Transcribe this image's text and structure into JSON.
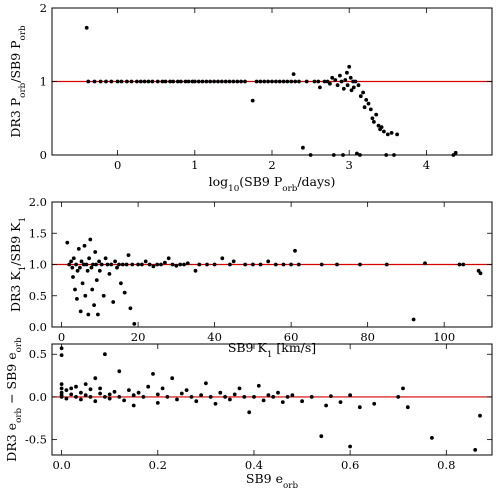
{
  "chart_data": [
    {
      "type": "scatter",
      "xlabel": "log₁₀(SB9 P_orb/days)",
      "ylabel": "DR3 P_orb/SB9 P_orb",
      "xlim": [
        -0.85,
        4.85
      ],
      "ylim": [
        0,
        2
      ],
      "xticks": [
        0,
        1,
        2,
        3,
        4
      ],
      "yticks": [
        0,
        1,
        2
      ],
      "reference_line": 1,
      "points": [
        [
          -0.4,
          1.73
        ],
        [
          -0.38,
          1.0
        ],
        [
          -0.3,
          1.0
        ],
        [
          -0.22,
          1.0
        ],
        [
          -0.15,
          1.0
        ],
        [
          -0.08,
          1.0
        ],
        [
          0.0,
          1.0
        ],
        [
          0.05,
          1.0
        ],
        [
          0.12,
          1.0
        ],
        [
          0.18,
          1.0
        ],
        [
          0.25,
          1.0
        ],
        [
          0.3,
          1.0
        ],
        [
          0.35,
          1.0
        ],
        [
          0.4,
          1.0
        ],
        [
          0.45,
          1.0
        ],
        [
          0.52,
          1.0
        ],
        [
          0.58,
          1.0
        ],
        [
          0.62,
          1.0
        ],
        [
          0.68,
          1.0
        ],
        [
          0.72,
          1.0
        ],
        [
          0.78,
          1.0
        ],
        [
          0.82,
          1.0
        ],
        [
          0.88,
          1.0
        ],
        [
          0.92,
          1.0
        ],
        [
          0.97,
          1.0
        ],
        [
          1.0,
          1.0
        ],
        [
          1.05,
          1.0
        ],
        [
          1.1,
          1.0
        ],
        [
          1.15,
          1.0
        ],
        [
          1.2,
          1.0
        ],
        [
          1.25,
          1.0
        ],
        [
          1.3,
          1.0
        ],
        [
          1.35,
          1.0
        ],
        [
          1.4,
          1.0
        ],
        [
          1.45,
          1.0
        ],
        [
          1.5,
          1.0
        ],
        [
          1.55,
          1.0
        ],
        [
          1.6,
          1.0
        ],
        [
          1.65,
          1.0
        ],
        [
          1.75,
          0.74
        ],
        [
          1.8,
          1.0
        ],
        [
          1.85,
          1.0
        ],
        [
          1.9,
          1.0
        ],
        [
          1.95,
          1.0
        ],
        [
          2.0,
          1.0
        ],
        [
          2.05,
          1.0
        ],
        [
          2.1,
          1.0
        ],
        [
          2.15,
          1.0
        ],
        [
          2.2,
          1.0
        ],
        [
          2.25,
          1.0
        ],
        [
          2.28,
          1.1
        ],
        [
          2.3,
          1.0
        ],
        [
          2.35,
          1.0
        ],
        [
          2.4,
          0.1
        ],
        [
          2.45,
          1.0
        ],
        [
          2.5,
          0.0
        ],
        [
          2.55,
          1.0
        ],
        [
          2.6,
          1.0
        ],
        [
          2.62,
          0.92
        ],
        [
          2.68,
          1.0
        ],
        [
          2.72,
          1.0
        ],
        [
          2.75,
          0.97
        ],
        [
          2.78,
          1.05
        ],
        [
          2.8,
          0.0
        ],
        [
          2.82,
          1.02
        ],
        [
          2.85,
          0.95
        ],
        [
          2.88,
          1.08
        ],
        [
          2.9,
          1.0
        ],
        [
          2.92,
          0.0
        ],
        [
          2.93,
          0.9
        ],
        [
          2.95,
          1.02
        ],
        [
          2.97,
          1.12
        ],
        [
          2.98,
          0.95
        ],
        [
          3.0,
          1.2
        ],
        [
          3.02,
          1.05
        ],
        [
          3.03,
          0.88
        ],
        [
          3.05,
          1.0
        ],
        [
          3.06,
          0.92
        ],
        [
          3.08,
          1.0
        ],
        [
          3.1,
          0.02
        ],
        [
          3.12,
          0.95
        ],
        [
          3.14,
          0.0
        ],
        [
          3.15,
          0.8
        ],
        [
          3.18,
          0.85
        ],
        [
          3.2,
          0.65
        ],
        [
          3.22,
          0.75
        ],
        [
          3.25,
          0.7
        ],
        [
          3.28,
          0.62
        ],
        [
          3.3,
          0.5
        ],
        [
          3.32,
          0.45
        ],
        [
          3.35,
          0.55
        ],
        [
          3.38,
          0.4
        ],
        [
          3.4,
          0.35
        ],
        [
          3.42,
          0.38
        ],
        [
          3.45,
          0.32
        ],
        [
          3.48,
          0.0
        ],
        [
          3.5,
          0.28
        ],
        [
          3.55,
          0.3
        ],
        [
          3.58,
          0.0
        ],
        [
          3.62,
          0.28
        ],
        [
          4.35,
          0.0
        ],
        [
          4.38,
          0.03
        ]
      ]
    },
    {
      "type": "scatter",
      "xlabel": "SB9 K₁ [km/s]",
      "ylabel": "DR3 K₁/SB9 K₁",
      "xlim": [
        -2.5,
        112.5
      ],
      "ylim": [
        0,
        2
      ],
      "xticks": [
        0,
        20,
        40,
        60,
        80,
        100
      ],
      "yticks": [
        0.0,
        0.5,
        1.0,
        1.5,
        2.0
      ],
      "reference_line": 1,
      "points": [
        [
          1.5,
          1.35
        ],
        [
          2.0,
          1.0
        ],
        [
          2.5,
          1.05
        ],
        [
          2.8,
          0.95
        ],
        [
          3.0,
          0.8
        ],
        [
          3.2,
          1.1
        ],
        [
          3.5,
          0.6
        ],
        [
          3.8,
          1.0
        ],
        [
          4.0,
          0.45
        ],
        [
          4.2,
          0.9
        ],
        [
          4.5,
          1.25
        ],
        [
          4.8,
          0.95
        ],
        [
          5.0,
          0.25
        ],
        [
          5.2,
          1.05
        ],
        [
          5.5,
          0.7
        ],
        [
          5.8,
          1.0
        ],
        [
          6.0,
          1.3
        ],
        [
          6.2,
          0.5
        ],
        [
          6.5,
          1.0
        ],
        [
          6.8,
          0.9
        ],
        [
          7.0,
          0.2
        ],
        [
          7.2,
          1.1
        ],
        [
          7.5,
          1.4
        ],
        [
          7.8,
          0.95
        ],
        [
          8.0,
          0.6
        ],
        [
          8.2,
          1.0
        ],
        [
          8.5,
          0.35
        ],
        [
          8.8,
          1.2
        ],
        [
          9.0,
          1.0
        ],
        [
          9.2,
          0.75
        ],
        [
          9.5,
          0.2
        ],
        [
          9.8,
          1.05
        ],
        [
          10.0,
          0.9
        ],
        [
          10.5,
          1.0
        ],
        [
          11.0,
          0.5
        ],
        [
          11.5,
          1.1
        ],
        [
          12.0,
          1.0
        ],
        [
          12.5,
          0.85
        ],
        [
          13.0,
          1.0
        ],
        [
          13.5,
          0.4
        ],
        [
          14.0,
          1.05
        ],
        [
          14.5,
          0.95
        ],
        [
          15.0,
          1.0
        ],
        [
          15.5,
          0.7
        ],
        [
          16.0,
          1.0
        ],
        [
          16.5,
          0.55
        ],
        [
          17.0,
          1.0
        ],
        [
          17.5,
          1.15
        ],
        [
          18.0,
          0.3
        ],
        [
          18.5,
          1.0
        ],
        [
          19.0,
          0.05
        ],
        [
          20.0,
          1.0
        ],
        [
          21.0,
          1.0
        ],
        [
          22.0,
          1.05
        ],
        [
          23.0,
          1.0
        ],
        [
          24.0,
          0.97
        ],
        [
          25.0,
          1.0
        ],
        [
          26.0,
          1.0
        ],
        [
          27.0,
          1.03
        ],
        [
          28.0,
          1.1
        ],
        [
          29.0,
          1.0
        ],
        [
          30.0,
          0.98
        ],
        [
          31.0,
          1.0
        ],
        [
          32.0,
          1.0
        ],
        [
          33.0,
          1.02
        ],
        [
          35.0,
          0.9
        ],
        [
          36.0,
          1.0
        ],
        [
          38.0,
          1.0
        ],
        [
          40.0,
          1.0
        ],
        [
          42.0,
          1.1
        ],
        [
          44.0,
          1.0
        ],
        [
          45.0,
          1.05
        ],
        [
          48.0,
          1.0
        ],
        [
          50.0,
          1.0
        ],
        [
          52.0,
          1.0
        ],
        [
          54.0,
          1.05
        ],
        [
          56.0,
          1.0
        ],
        [
          58.0,
          1.0
        ],
        [
          60.0,
          1.0
        ],
        [
          61.0,
          1.22
        ],
        [
          62.0,
          1.0
        ],
        [
          68.0,
          1.0
        ],
        [
          72.0,
          1.0
        ],
        [
          78.0,
          1.0
        ],
        [
          85.0,
          1.0
        ],
        [
          92.0,
          0.12
        ],
        [
          95.0,
          1.02
        ],
        [
          104.0,
          1.0
        ],
        [
          105.0,
          1.0
        ],
        [
          109.0,
          0.9
        ],
        [
          109.5,
          0.86
        ]
      ]
    },
    {
      "type": "scatter",
      "xlabel": "SB9 e_orb",
      "ylabel": "DR3 e_orb − SB9 e_orb",
      "xlim": [
        -0.02,
        0.895
      ],
      "ylim": [
        -0.68,
        0.62
      ],
      "xticks": [
        0.0,
        0.2,
        0.4,
        0.6,
        0.8
      ],
      "yticks": [
        -0.5,
        0.0,
        0.5
      ],
      "reference_line": 0,
      "points": [
        [
          0.0,
          0.57
        ],
        [
          0.0,
          0.49
        ],
        [
          0.0,
          0.15
        ],
        [
          0.0,
          0.1
        ],
        [
          0.0,
          0.05
        ],
        [
          0.0,
          0.02
        ],
        [
          0.0,
          0.0
        ],
        [
          0.01,
          -0.02
        ],
        [
          0.01,
          0.08
        ],
        [
          0.02,
          0.1
        ],
        [
          0.02,
          0.03
        ],
        [
          0.03,
          0.0
        ],
        [
          0.03,
          0.12
        ],
        [
          0.04,
          -0.03
        ],
        [
          0.04,
          0.05
        ],
        [
          0.05,
          0.02
        ],
        [
          0.05,
          0.15
        ],
        [
          0.06,
          0.0
        ],
        [
          0.06,
          0.09
        ],
        [
          0.07,
          -0.05
        ],
        [
          0.07,
          0.22
        ],
        [
          0.08,
          0.04
        ],
        [
          0.08,
          0.1
        ],
        [
          0.09,
          0.0
        ],
        [
          0.09,
          0.5
        ],
        [
          0.1,
          -0.02
        ],
        [
          0.1,
          0.03
        ],
        [
          0.11,
          0.06
        ],
        [
          0.12,
          0.0
        ],
        [
          0.12,
          0.3
        ],
        [
          0.13,
          -0.04
        ],
        [
          0.14,
          0.08
        ],
        [
          0.15,
          0.02
        ],
        [
          0.15,
          -0.1
        ],
        [
          0.16,
          0.05
        ],
        [
          0.17,
          0.0
        ],
        [
          0.18,
          0.12
        ],
        [
          0.19,
          0.27
        ],
        [
          0.2,
          0.03
        ],
        [
          0.2,
          -0.07
        ],
        [
          0.21,
          0.1
        ],
        [
          0.22,
          0.0
        ],
        [
          0.23,
          0.22
        ],
        [
          0.24,
          -0.03
        ],
        [
          0.25,
          0.04
        ],
        [
          0.26,
          0.08
        ],
        [
          0.27,
          0.0
        ],
        [
          0.28,
          -0.05
        ],
        [
          0.29,
          0.02
        ],
        [
          0.3,
          0.16
        ],
        [
          0.31,
          0.0
        ],
        [
          0.32,
          -0.08
        ],
        [
          0.33,
          0.05
        ],
        [
          0.34,
          0.0
        ],
        [
          0.35,
          -0.03
        ],
        [
          0.36,
          0.03
        ],
        [
          0.37,
          0.1
        ],
        [
          0.38,
          0.0
        ],
        [
          0.39,
          -0.18
        ],
        [
          0.4,
          0.0
        ],
        [
          0.41,
          0.13
        ],
        [
          0.42,
          -0.04
        ],
        [
          0.43,
          0.02
        ],
        [
          0.44,
          0.0
        ],
        [
          0.45,
          0.05
        ],
        [
          0.46,
          -0.06
        ],
        [
          0.47,
          0.0
        ],
        [
          0.48,
          0.02
        ],
        [
          0.5,
          -0.05
        ],
        [
          0.52,
          0.0
        ],
        [
          0.54,
          -0.46
        ],
        [
          0.55,
          -0.1
        ],
        [
          0.56,
          0.01
        ],
        [
          0.58,
          -0.06
        ],
        [
          0.6,
          -0.58
        ],
        [
          0.6,
          0.02
        ],
        [
          0.62,
          -0.12
        ],
        [
          0.65,
          -0.08
        ],
        [
          0.7,
          0.0
        ],
        [
          0.71,
          0.1
        ],
        [
          0.72,
          -0.12
        ],
        [
          0.77,
          -0.48
        ],
        [
          0.86,
          -0.62
        ],
        [
          0.87,
          -0.22
        ]
      ]
    }
  ]
}
